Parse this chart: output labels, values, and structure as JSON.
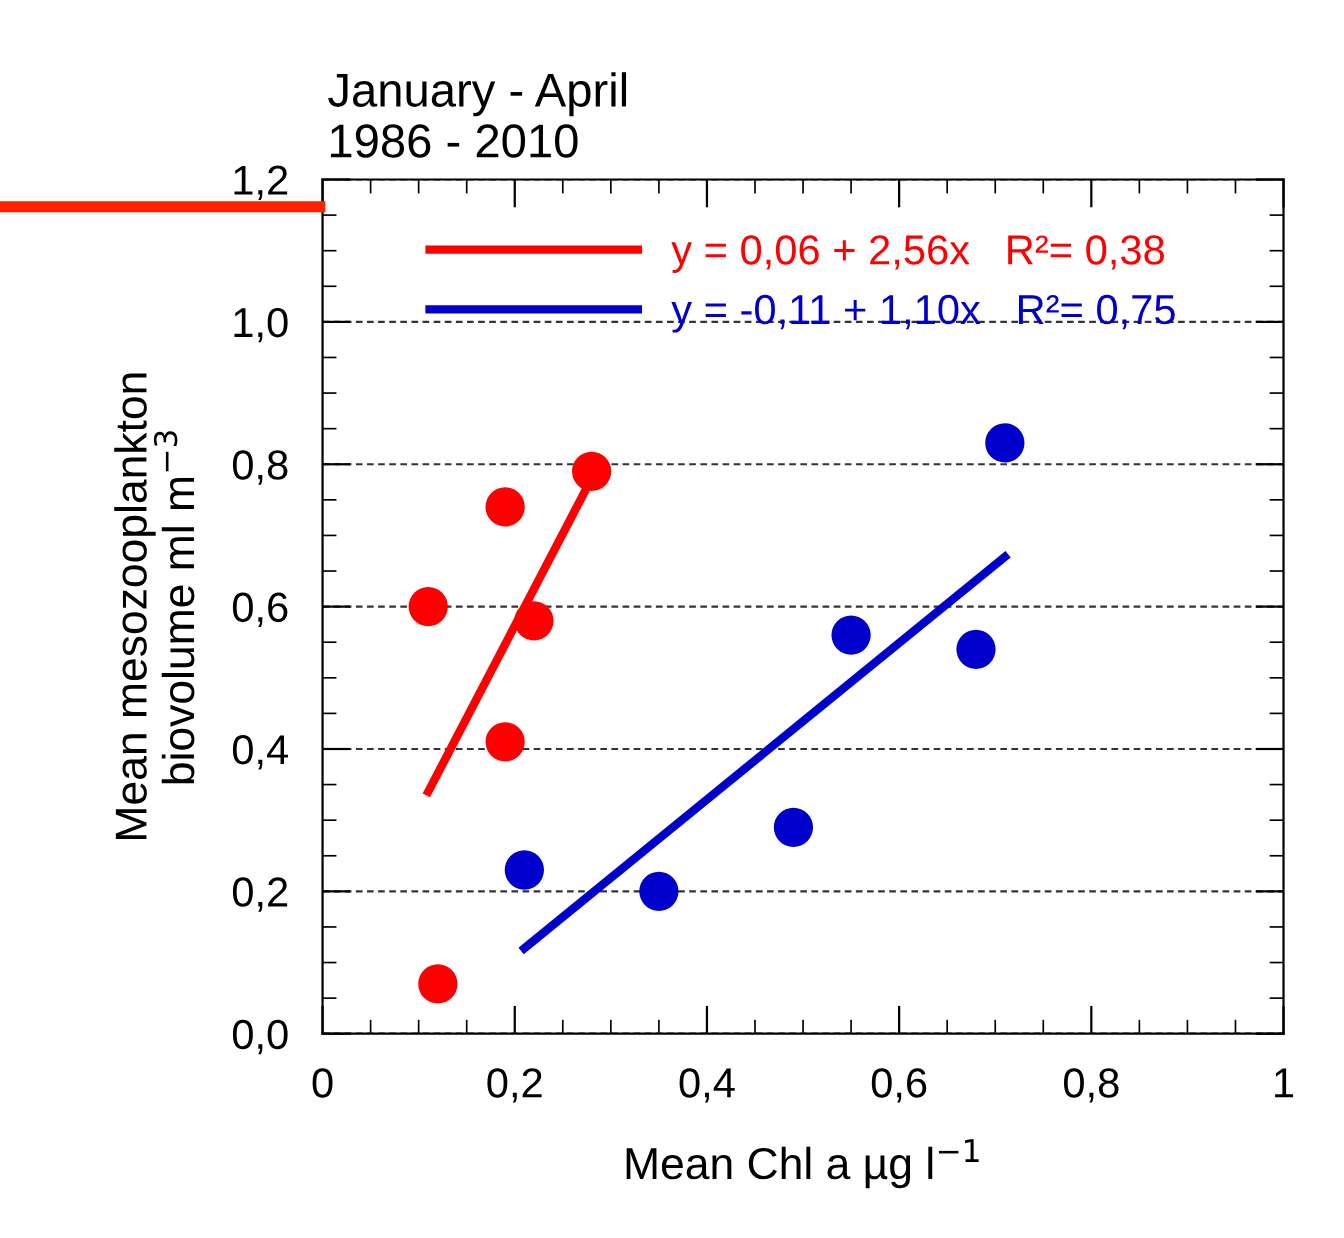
{
  "chart_data": {
    "type": "scatter",
    "title": "January - April\n1986 - 2010",
    "xlabel": "Mean Chl a µg l$^{−1}$",
    "ylabel": "Mean mesozooplankton\nbiovolume ml m$^{−3}$",
    "xlim": [
      0,
      1
    ],
    "ylim": [
      0,
      1.2
    ],
    "xticks": [
      0,
      {
        "value": 0.2,
        "label": "0,2"
      },
      {
        "value": 0.4,
        "label": "0,4"
      },
      {
        "value": 0.6,
        "label": "0,6"
      },
      {
        "value": 0.8,
        "label": "0,8"
      },
      1
    ],
    "yticks": [
      {
        "value": 0,
        "label": "0,0"
      },
      {
        "value": 0.2,
        "label": "0,2"
      },
      {
        "value": 0.4,
        "label": "0,4"
      },
      {
        "value": 0.6,
        "label": "0,6"
      },
      {
        "value": 0.8,
        "label": "0,8"
      },
      {
        "value": 1.0,
        "label": "1,0"
      },
      {
        "value": 1.2,
        "label": "1,2"
      }
    ],
    "grid": "y",
    "legend": "top",
    "series": [
      {
        "marker": "circle",
        "color": "#ff0000",
        "x": [
          0.11,
          0.19,
          0.22,
          0.19,
          0.28,
          0.12
        ],
        "values": [
          0.6,
          0.74,
          0.58,
          0.41,
          0.79,
          0.07
        ]
      },
      {
        "marker": "circle",
        "color": "#0000cc",
        "x": [
          0.21,
          0.35,
          0.49,
          0.55,
          0.68,
          0.71
        ],
        "values": [
          0.23,
          0.2,
          0.29,
          0.56,
          0.54,
          0.83
        ]
      },
      {
        "type": "line",
        "name": "y = 0,06 + 2,56x   R²= 0,38",
        "color": "#ff0000",
        "x": [
          0.11,
          0.28
        ],
        "values": [
          0.34,
          0.78
        ]
      },
      {
        "type": "line",
        "name": "y = -0,11 + 1,10x   R²= 0,75",
        "color": "#0000cc",
        "x": [
          0.21,
          0.71
        ],
        "values": [
          0.12,
          0.67
        ]
      }
    ]
  }
}
